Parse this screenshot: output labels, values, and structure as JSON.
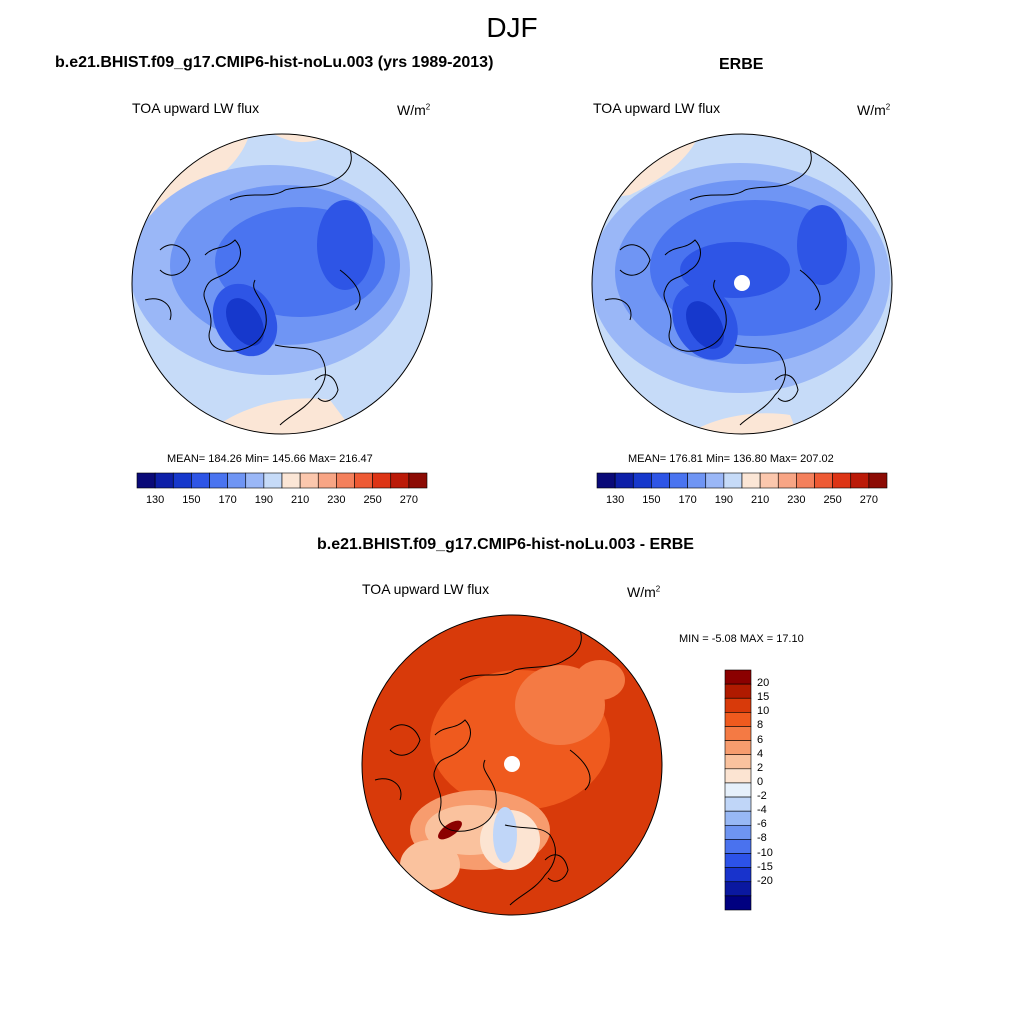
{
  "figure": {
    "title": "DJF"
  },
  "panels": [
    {
      "id": "model",
      "title": "b.e21.BHIST.f09_g17.CMIP6-hist-noLu.003 (yrs 1989-2013)",
      "variable": "TOA upward LW flux",
      "units_base": "W/m",
      "units_exp": "2",
      "stats": "MEAN= 184.26  Min= 145.66  Max= 216.47",
      "colorbar": {
        "colors": [
          "#0a0a78",
          "#0d1fa8",
          "#1638cc",
          "#2e55e6",
          "#4a74f0",
          "#6f95f4",
          "#9ab7f7",
          "#c6dbf8",
          "#fbe6d6",
          "#fbc7ad",
          "#f8a585",
          "#f4805c",
          "#ee5a34",
          "#dd3415",
          "#bb1a08",
          "#8c0b04"
        ],
        "tick_labels": [
          "130",
          "150",
          "170",
          "190",
          "210",
          "230",
          "250",
          "270"
        ]
      }
    },
    {
      "id": "obs",
      "title": "ERBE",
      "variable": "TOA upward LW flux",
      "units_base": "W/m",
      "units_exp": "2",
      "stats": "MEAN= 176.81  Min= 136.80  Max= 207.02",
      "colorbar": {
        "colors": [
          "#0a0a78",
          "#0d1fa8",
          "#1638cc",
          "#2e55e6",
          "#4a74f0",
          "#6f95f4",
          "#9ab7f7",
          "#c6dbf8",
          "#fbe6d6",
          "#fbc7ad",
          "#f8a585",
          "#f4805c",
          "#ee5a34",
          "#dd3415",
          "#bb1a08",
          "#8c0b04"
        ],
        "tick_labels": [
          "130",
          "150",
          "170",
          "190",
          "210",
          "230",
          "250",
          "270"
        ]
      }
    },
    {
      "id": "diff",
      "title": "b.e21.BHIST.f09_g17.CMIP6-hist-noLu.003 - ERBE",
      "variable": "TOA upward LW flux",
      "units_base": "W/m",
      "units_exp": "2",
      "stats": "MIN =  -5.08 MAX =  17.10",
      "colorbar": {
        "colors": [
          "#8b0000",
          "#b01a00",
          "#d83a0a",
          "#ef5a1e",
          "#f47a44",
          "#f79c6e",
          "#fac29e",
          "#fce4d2",
          "#e6f0fb",
          "#c0d6f8",
          "#98b8f5",
          "#6e94f1",
          "#4a72ee",
          "#2c52e8",
          "#1833cc",
          "#0a18a0",
          "#000080"
        ],
        "tick_labels": [
          "20",
          "15",
          "10",
          "8",
          "6",
          "4",
          "2",
          "0",
          "-2",
          "-4",
          "-6",
          "-8",
          "-10",
          "-15",
          "-20"
        ]
      }
    }
  ]
}
